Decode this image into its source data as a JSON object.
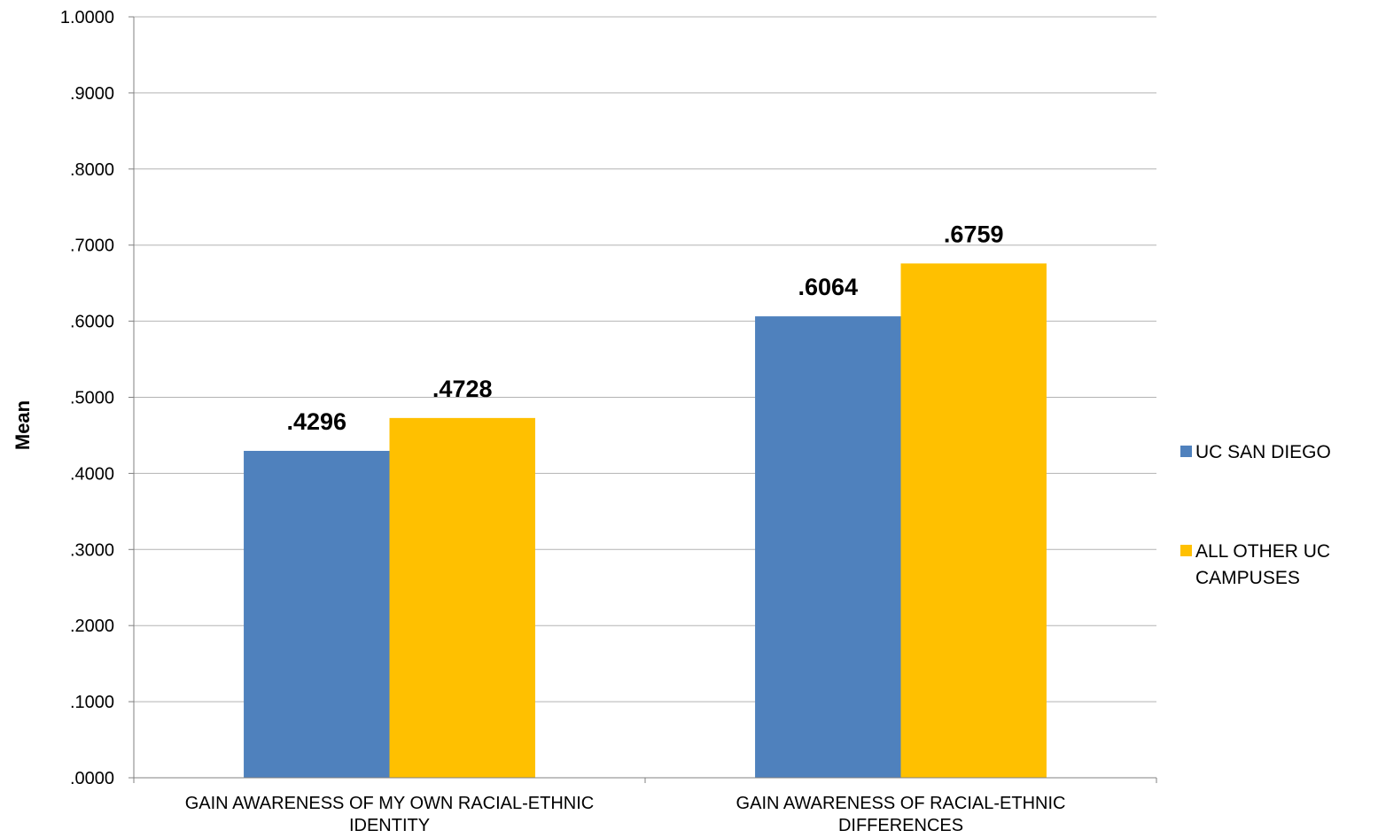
{
  "chart_data": {
    "type": "bar",
    "title": "",
    "xlabel": "",
    "ylabel": "Mean",
    "ylim": [
      0,
      1
    ],
    "yticks": [
      ".0000",
      ".1000",
      ".2000",
      ".3000",
      ".4000",
      ".5000",
      ".6000",
      ".7000",
      ".8000",
      ".9000",
      "1.0000"
    ],
    "categories": [
      [
        "GAIN AWARENESS OF MY OWN RACIAL-ETHNIC",
        "IDENTITY"
      ],
      [
        "GAIN AWARENESS OF RACIAL-ETHNIC",
        "DIFFERENCES"
      ]
    ],
    "series": [
      {
        "name": "UC SAN DIEGO",
        "color": "#4F81BD",
        "values": [
          0.4296,
          0.6064
        ],
        "labels": [
          ".4296",
          ".6064"
        ]
      },
      {
        "name": "ALL OTHER UC CAMPUSES",
        "legend_lines": [
          "ALL OTHER UC",
          "CAMPUSES"
        ],
        "color": "#FFC000",
        "values": [
          0.4728,
          0.6759
        ],
        "labels": [
          ".4728",
          ".6759"
        ]
      }
    ],
    "grid": true,
    "legend": "right"
  }
}
